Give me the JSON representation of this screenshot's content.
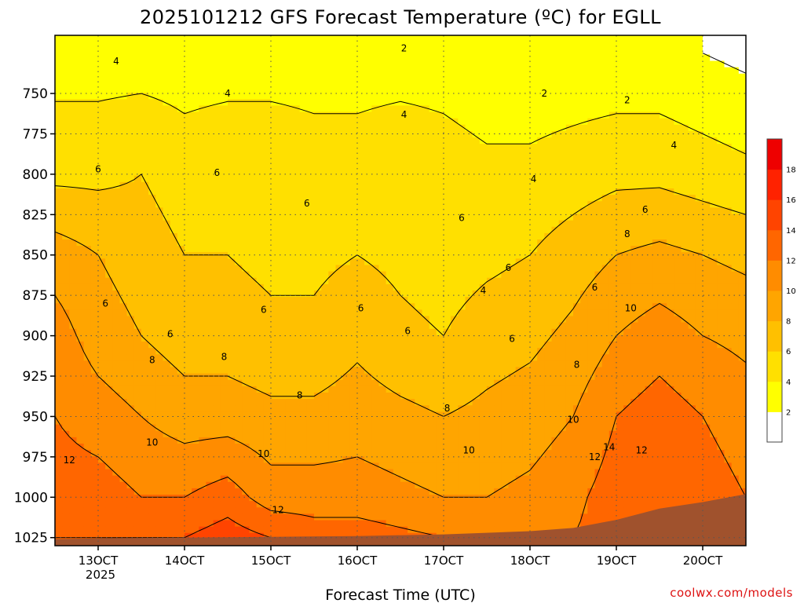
{
  "chart_data": {
    "type": "heatmap",
    "title": "2025101212 GFS Forecast Temperature (ºC) for EGLL",
    "xlabel": "Forecast Time (UTC)",
    "ylabel": "",
    "credit": "coolwx.com/models",
    "x_ticks": [
      "13OCT",
      "14OCT",
      "15OCT",
      "16OCT",
      "17OCT",
      "18OCT",
      "19OCT",
      "20OCT"
    ],
    "x_year_label": "2025",
    "x_range_hours": [
      -12,
      180
    ],
    "y_ticks": [
      750,
      775,
      800,
      825,
      850,
      875,
      900,
      925,
      950,
      975,
      1000,
      1025
    ],
    "y_range_hpa": [
      714,
      1030
    ],
    "colorbar": {
      "levels": [
        2,
        4,
        6,
        8,
        10,
        12,
        14,
        16,
        18
      ],
      "colors": [
        "#ffffff",
        "#ffff00",
        "#ffe000",
        "#ffc000",
        "#ffa500",
        "#ff8c00",
        "#ff6600",
        "#ff4400",
        "#ff2200",
        "#ee0000"
      ]
    },
    "temperature_profile": [
      {
        "hour": -12,
        "values": [
          [
            725,
            3
          ],
          [
            800,
            5.5
          ],
          [
            850,
            9
          ],
          [
            900,
            11
          ],
          [
            950,
            12
          ],
          [
            1000,
            13
          ],
          [
            1025,
            14
          ]
        ]
      },
      {
        "hour": 0,
        "values": [
          [
            725,
            3
          ],
          [
            800,
            5.5
          ],
          [
            850,
            8
          ],
          [
            900,
            9
          ],
          [
            950,
            11
          ],
          [
            1000,
            13
          ],
          [
            1025,
            14
          ]
        ]
      },
      {
        "hour": 12,
        "values": [
          [
            725,
            3
          ],
          [
            800,
            6
          ],
          [
            850,
            7
          ],
          [
            900,
            8
          ],
          [
            950,
            10
          ],
          [
            1000,
            12
          ],
          [
            1025,
            14
          ]
        ]
      },
      {
        "hour": 24,
        "values": [
          [
            725,
            3
          ],
          [
            800,
            5
          ],
          [
            850,
            6
          ],
          [
            900,
            7
          ],
          [
            950,
            9
          ],
          [
            1000,
            12
          ],
          [
            1025,
            14
          ]
        ]
      },
      {
        "hour": 36,
        "values": [
          [
            725,
            3
          ],
          [
            800,
            5.5
          ],
          [
            850,
            6
          ],
          [
            900,
            7
          ],
          [
            950,
            9
          ],
          [
            1000,
            13
          ],
          [
            1025,
            15
          ]
        ]
      },
      {
        "hour": 48,
        "values": [
          [
            725,
            3
          ],
          [
            800,
            5.5
          ],
          [
            850,
            5.5
          ],
          [
            900,
            6.5
          ],
          [
            950,
            8.5
          ],
          [
            1000,
            11
          ],
          [
            1025,
            14
          ]
        ]
      },
      {
        "hour": 60,
        "values": [
          [
            725,
            3
          ],
          [
            800,
            5
          ],
          [
            850,
            5.5
          ],
          [
            900,
            6.5
          ],
          [
            950,
            8.5
          ],
          [
            1000,
            11
          ],
          [
            1025,
            13
          ]
        ]
      },
      {
        "hour": 72,
        "values": [
          [
            725,
            3
          ],
          [
            800,
            5
          ],
          [
            850,
            6
          ],
          [
            900,
            7.5
          ],
          [
            950,
            9
          ],
          [
            1000,
            11
          ],
          [
            1025,
            13
          ]
        ]
      },
      {
        "hour": 84,
        "values": [
          [
            725,
            3
          ],
          [
            800,
            5.5
          ],
          [
            850,
            5.5
          ],
          [
            900,
            6.5
          ],
          [
            950,
            8.5
          ],
          [
            1000,
            10.5
          ],
          [
            1025,
            12.5
          ]
        ]
      },
      {
        "hour": 96,
        "values": [
          [
            725,
            3
          ],
          [
            800,
            5
          ],
          [
            850,
            5
          ],
          [
            900,
            6
          ],
          [
            950,
            8
          ],
          [
            1000,
            10
          ],
          [
            1025,
            12
          ]
        ]
      },
      {
        "hour": 108,
        "values": [
          [
            725,
            2.5
          ],
          [
            800,
            4.5
          ],
          [
            850,
            5.5
          ],
          [
            900,
            7
          ],
          [
            950,
            8.5
          ],
          [
            1000,
            10
          ],
          [
            1025,
            12
          ]
        ]
      },
      {
        "hour": 120,
        "values": [
          [
            725,
            2.5
          ],
          [
            800,
            4.5
          ],
          [
            850,
            6
          ],
          [
            900,
            7.5
          ],
          [
            950,
            9
          ],
          [
            1000,
            10.5
          ],
          [
            1025,
            12
          ]
        ]
      },
      {
        "hour": 132,
        "values": [
          [
            725,
            2.5
          ],
          [
            800,
            5
          ],
          [
            850,
            7
          ],
          [
            900,
            8.5
          ],
          [
            950,
            10
          ],
          [
            1000,
            11.5
          ],
          [
            1025,
            12
          ]
        ]
      },
      {
        "hour": 144,
        "values": [
          [
            725,
            2.5
          ],
          [
            800,
            5.5
          ],
          [
            850,
            8
          ],
          [
            900,
            10
          ],
          [
            950,
            12
          ],
          [
            1000,
            13
          ],
          [
            1025,
            13
          ]
        ]
      },
      {
        "hour": 156,
        "values": [
          [
            725,
            2.5
          ],
          [
            800,
            5.5
          ],
          [
            850,
            8.5
          ],
          [
            900,
            11
          ],
          [
            950,
            13
          ],
          [
            1000,
            13
          ],
          [
            1025,
            13
          ]
        ]
      },
      {
        "hour": 168,
        "values": [
          [
            725,
            2
          ],
          [
            800,
            5
          ],
          [
            850,
            8
          ],
          [
            900,
            10
          ],
          [
            950,
            12
          ],
          [
            1000,
            13
          ],
          [
            1025,
            13
          ]
        ]
      },
      {
        "hour": 180,
        "values": [
          [
            725,
            1.5
          ],
          [
            800,
            4.5
          ],
          [
            850,
            7.5
          ],
          [
            900,
            9.5
          ],
          [
            950,
            11
          ],
          [
            1000,
            12
          ],
          [
            1025,
            12
          ]
        ]
      }
    ],
    "terrain_hpa": [
      {
        "hour": -12,
        "p": 1026
      },
      {
        "hour": 0,
        "p": 1025.5
      },
      {
        "hour": 24,
        "p": 1025
      },
      {
        "hour": 48,
        "p": 1024.5
      },
      {
        "hour": 72,
        "p": 1024
      },
      {
        "hour": 96,
        "p": 1023
      },
      {
        "hour": 120,
        "p": 1021
      },
      {
        "hour": 132,
        "p": 1019
      },
      {
        "hour": 144,
        "p": 1014
      },
      {
        "hour": 156,
        "p": 1007
      },
      {
        "hour": 168,
        "p": 1003
      },
      {
        "hour": 180,
        "p": 998
      }
    ],
    "contour_labels": [
      {
        "text": "2",
        "hour": 85,
        "p": 722
      },
      {
        "text": "2",
        "hour": 124,
        "p": 750
      },
      {
        "text": "2",
        "hour": 147,
        "p": 754
      },
      {
        "text": "4",
        "hour": 5,
        "p": 730
      },
      {
        "text": "4",
        "hour": 36,
        "p": 750
      },
      {
        "text": "4",
        "hour": 85,
        "p": 763
      },
      {
        "text": "4",
        "hour": 121,
        "p": 803
      },
      {
        "text": "4",
        "hour": 160,
        "p": 782
      },
      {
        "text": "6",
        "hour": 0,
        "p": 797
      },
      {
        "text": "6",
        "hour": 33,
        "p": 799
      },
      {
        "text": "6",
        "hour": 58,
        "p": 818
      },
      {
        "text": "6",
        "hour": 101,
        "p": 827
      },
      {
        "text": "6",
        "hour": 152,
        "p": 822
      },
      {
        "text": "6",
        "hour": 114,
        "p": 858
      },
      {
        "text": "6",
        "hour": 138,
        "p": 870
      },
      {
        "text": "6",
        "hour": 2,
        "p": 880
      },
      {
        "text": "6",
        "hour": 20,
        "p": 899
      },
      {
        "text": "6",
        "hour": 46,
        "p": 884
      },
      {
        "text": "6",
        "hour": 73,
        "p": 883
      },
      {
        "text": "6",
        "hour": 86,
        "p": 897
      },
      {
        "text": "6",
        "hour": 115,
        "p": 902
      },
      {
        "text": "4",
        "hour": 107,
        "p": 872
      },
      {
        "text": "8",
        "hour": 15,
        "p": 915
      },
      {
        "text": "8",
        "hour": 35,
        "p": 913
      },
      {
        "text": "8",
        "hour": 56,
        "p": 937
      },
      {
        "text": "8",
        "hour": 97,
        "p": 945
      },
      {
        "text": "8",
        "hour": 147,
        "p": 837
      },
      {
        "text": "8",
        "hour": 133,
        "p": 918
      },
      {
        "text": "10",
        "hour": 15,
        "p": 966
      },
      {
        "text": "10",
        "hour": 46,
        "p": 973
      },
      {
        "text": "10",
        "hour": 103,
        "p": 971
      },
      {
        "text": "10",
        "hour": 132,
        "p": 952
      },
      {
        "text": "10",
        "hour": 148,
        "p": 883
      },
      {
        "text": "12",
        "hour": -8,
        "p": 977
      },
      {
        "text": "12",
        "hour": 50,
        "p": 1008
      },
      {
        "text": "12",
        "hour": 138,
        "p": 975
      },
      {
        "text": "12",
        "hour": 151,
        "p": 971
      },
      {
        "text": "14",
        "hour": 142,
        "p": 969
      }
    ]
  }
}
